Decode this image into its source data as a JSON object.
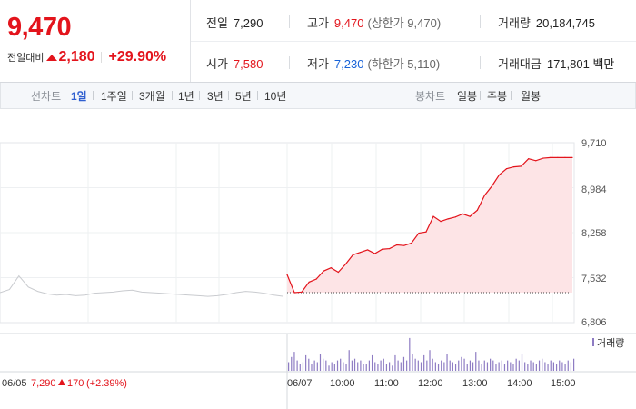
{
  "quote": {
    "price": "9,470",
    "change_label": "전일대비",
    "change": "2,180",
    "change_rate": "+29.90%",
    "prev_close": {
      "label": "전일",
      "value": "7,290"
    },
    "high": {
      "label": "고가",
      "value": "9,470",
      "note": "(상한가 9,470)"
    },
    "volume": {
      "label": "거래량",
      "value": "20,184,745"
    },
    "open": {
      "label": "시가",
      "value": "7,580"
    },
    "low": {
      "label": "저가",
      "value": "7,230",
      "note": "(하한가 5,110)"
    },
    "amount": {
      "label": "거래대금",
      "value": "171,801 백만"
    }
  },
  "tabs": {
    "line_label": "선차트",
    "line": [
      "1일",
      "1주일",
      "3개월",
      "1년",
      "3년",
      "5년",
      "10년"
    ],
    "candle_label": "봉차트",
    "candle": [
      "일봉",
      "주봉",
      "월봉"
    ]
  },
  "colors": {
    "up": "#e3141c",
    "down": "#1762d8",
    "accent": "#2f5fd0",
    "volume": "#8e7cc3"
  },
  "chart_data": {
    "type": "line",
    "ylim": [
      6806,
      9710
    ],
    "yticks": [
      "9,710",
      "8,984",
      "8,258",
      "7,532",
      "6,806"
    ],
    "prev_day": {
      "date": "06/05",
      "close": "7,290",
      "change": "170",
      "rate": "(+2.39%)"
    },
    "day_label": "06/07",
    "xticks": [
      "10:00",
      "11:00",
      "12:00",
      "13:00",
      "14:00",
      "15:00"
    ],
    "volume_label": "거래량",
    "prev_close_value": 7290,
    "prev_series": {
      "name": "06/05",
      "x": [
        0,
        1,
        2,
        3,
        4,
        5,
        6,
        7,
        8,
        9,
        10,
        11,
        12,
        13,
        14,
        15,
        16,
        17,
        18,
        19,
        20,
        21,
        22,
        23,
        24,
        25,
        26,
        27,
        28,
        29,
        30
      ],
      "values": [
        7290,
        7340,
        7560,
        7380,
        7310,
        7270,
        7250,
        7260,
        7240,
        7250,
        7280,
        7290,
        7300,
        7320,
        7330,
        7300,
        7290,
        7280,
        7270,
        7260,
        7250,
        7240,
        7230,
        7240,
        7260,
        7290,
        7310,
        7300,
        7280,
        7250,
        7230
      ]
    },
    "series": {
      "name": "06/07",
      "x": [
        "09:00",
        "09:10",
        "09:20",
        "09:30",
        "09:40",
        "09:50",
        "10:00",
        "10:10",
        "10:20",
        "10:30",
        "10:40",
        "10:50",
        "11:00",
        "11:10",
        "11:20",
        "11:30",
        "11:40",
        "11:50",
        "12:00",
        "12:10",
        "12:20",
        "12:30",
        "12:40",
        "12:50",
        "13:00",
        "13:10",
        "13:20",
        "13:30",
        "13:40",
        "13:50",
        "14:00",
        "14:10",
        "14:20",
        "14:30",
        "14:40",
        "14:50",
        "15:00",
        "15:10",
        "15:20",
        "15:30"
      ],
      "values": [
        7580,
        7290,
        7300,
        7460,
        7510,
        7640,
        7690,
        7620,
        7750,
        7900,
        7940,
        7980,
        7920,
        7990,
        8000,
        8060,
        8050,
        8090,
        8250,
        8270,
        8520,
        8440,
        8480,
        8510,
        8560,
        8520,
        8620,
        8860,
        9010,
        9190,
        9290,
        9320,
        9330,
        9450,
        9420,
        9460,
        9470,
        9470,
        9470,
        9470
      ]
    },
    "volume": {
      "name": "거래량",
      "relative": [
        0.25,
        0.4,
        0.55,
        0.3,
        0.2,
        0.25,
        0.45,
        0.35,
        0.2,
        0.3,
        0.25,
        0.5,
        0.35,
        0.3,
        0.15,
        0.25,
        0.2,
        0.3,
        0.35,
        0.25,
        0.2,
        0.6,
        0.3,
        0.35,
        0.25,
        0.3,
        0.2,
        0.2,
        0.3,
        0.45,
        0.25,
        0.2,
        0.3,
        0.35,
        0.2,
        0.25,
        0.15,
        0.45,
        0.3,
        0.25,
        0.4,
        0.3,
        0.95,
        0.5,
        0.35,
        0.3,
        0.25,
        0.45,
        0.3,
        0.6,
        0.35,
        0.25,
        0.2,
        0.3,
        0.25,
        0.5,
        0.3,
        0.25,
        0.2,
        0.3,
        0.4,
        0.35,
        0.2,
        0.3,
        0.25,
        0.55,
        0.3,
        0.2,
        0.3,
        0.25,
        0.35,
        0.3,
        0.2,
        0.25,
        0.3,
        0.2,
        0.3,
        0.25,
        0.2,
        0.35,
        0.3,
        0.5,
        0.25,
        0.2,
        0.3,
        0.25,
        0.2,
        0.3,
        0.35,
        0.25,
        0.2,
        0.3,
        0.25,
        0.2,
        0.3,
        0.25,
        0.2,
        0.3,
        0.25,
        0.35
      ]
    }
  }
}
